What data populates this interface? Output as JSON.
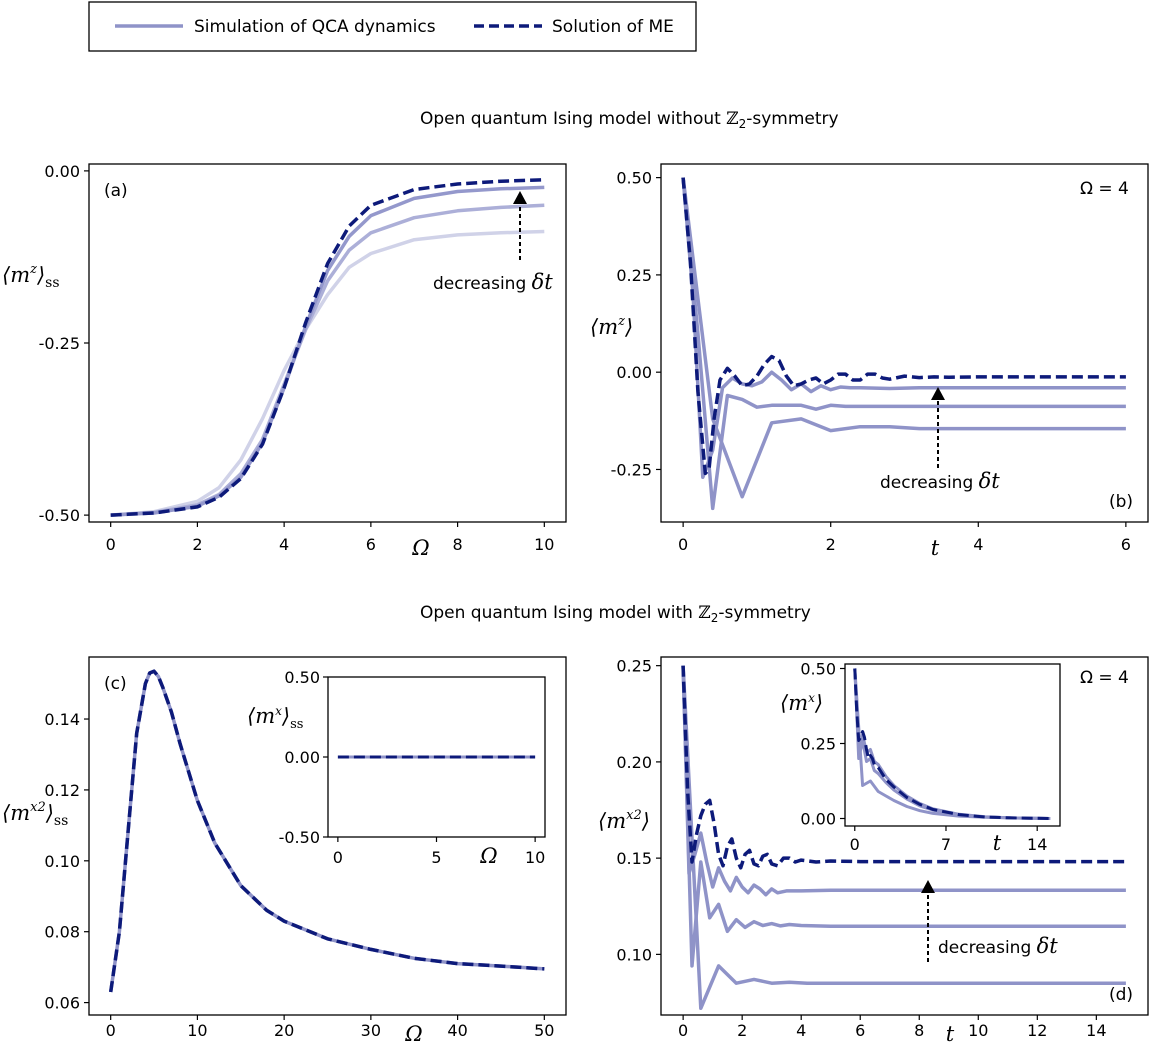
{
  "legend": {
    "sim_label": "Simulation of QCA dynamics",
    "me_label": "Solution of ME"
  },
  "section_titles": {
    "top_prefix": "Open quantum Ising model without ",
    "top_suffix": "-symmetry",
    "bottom_prefix": "Open quantum Ising model with ",
    "bottom_suffix": "-symmetry",
    "symbol": "ℤ",
    "symbol_sub": "2"
  },
  "annotations": {
    "decreasing": "decreasing ",
    "dt": "δt",
    "omega_value": "Ω = 4"
  },
  "colors": {
    "me": "#0d1a7a",
    "sim": "#8f93c8",
    "sim_light_1": "#d0d2e8",
    "sim_light_2": "#acafd8",
    "sim_light_3": "#9498cc"
  },
  "chart_data": [
    {
      "id": "a",
      "panel_label": "(a)",
      "type": "line",
      "xlabel": "Ω",
      "ylabel": "⟨mᶻ⟩ss",
      "xlim": [
        -0.5,
        10.5
      ],
      "ylim": [
        -0.51,
        0.01
      ],
      "xticks": [
        "0",
        "2",
        "4",
        "6",
        "8",
        "10"
      ],
      "yticks": [
        "-0.50",
        "-0.25",
        "0.00"
      ],
      "series": [
        {
          "role": "sim",
          "shade": 1,
          "x": [
            0,
            1,
            2,
            2.5,
            3,
            3.5,
            4,
            4.5,
            5,
            5.5,
            6,
            7,
            8,
            9,
            10
          ],
          "y": [
            -0.5,
            -0.495,
            -0.48,
            -0.46,
            -0.42,
            -0.36,
            -0.29,
            -0.23,
            -0.18,
            -0.14,
            -0.12,
            -0.1,
            -0.093,
            -0.09,
            -0.088
          ]
        },
        {
          "role": "sim",
          "shade": 2,
          "x": [
            0,
            1,
            2,
            2.5,
            3,
            3.5,
            4,
            4.5,
            5,
            5.5,
            6,
            7,
            8,
            9,
            10
          ],
          "y": [
            -0.5,
            -0.496,
            -0.485,
            -0.47,
            -0.44,
            -0.39,
            -0.31,
            -0.23,
            -0.16,
            -0.115,
            -0.09,
            -0.068,
            -0.058,
            -0.053,
            -0.05
          ]
        },
        {
          "role": "sim",
          "shade": 3,
          "x": [
            0,
            1,
            2,
            2.5,
            3,
            3.5,
            4,
            4.5,
            5,
            5.5,
            6,
            7,
            8,
            9,
            10
          ],
          "y": [
            -0.5,
            -0.497,
            -0.487,
            -0.472,
            -0.445,
            -0.395,
            -0.315,
            -0.225,
            -0.145,
            -0.095,
            -0.065,
            -0.04,
            -0.03,
            -0.026,
            -0.024
          ]
        },
        {
          "role": "me",
          "x": [
            0,
            1,
            2,
            2.5,
            3,
            3.5,
            4,
            4.5,
            5,
            5.5,
            6,
            7,
            8,
            9,
            10
          ],
          "y": [
            -0.5,
            -0.497,
            -0.488,
            -0.474,
            -0.447,
            -0.397,
            -0.315,
            -0.22,
            -0.135,
            -0.08,
            -0.05,
            -0.027,
            -0.019,
            -0.015,
            -0.013
          ]
        }
      ]
    },
    {
      "id": "b",
      "panel_label": "(b)",
      "type": "line",
      "xlabel": "t",
      "ylabel": "⟨mᶻ⟩",
      "xlim": [
        -0.3,
        6.3
      ],
      "ylim": [
        -0.385,
        0.535
      ],
      "xticks": [
        "0",
        "2",
        "4",
        "6"
      ],
      "yticks": [
        "-0.25",
        "0.00",
        "0.25",
        "0.50"
      ],
      "series": [
        {
          "role": "sim",
          "x": [
            0,
            0.4,
            0.8,
            1.2,
            1.6,
            2.0,
            2.4,
            2.8,
            3.2,
            4.0,
            5.0,
            6.0
          ],
          "y": [
            0.5,
            -0.12,
            -0.32,
            -0.13,
            -0.12,
            -0.15,
            -0.14,
            -0.14,
            -0.145,
            -0.145,
            -0.145,
            -0.145
          ]
        },
        {
          "role": "sim",
          "x": [
            0,
            0.2,
            0.4,
            0.6,
            0.8,
            1.0,
            1.2,
            1.4,
            1.6,
            1.8,
            2.0,
            2.2,
            2.6,
            3.0,
            4.0,
            5.0,
            6.0
          ],
          "y": [
            0.5,
            0.1,
            -0.35,
            -0.06,
            -0.07,
            -0.09,
            -0.085,
            -0.085,
            -0.085,
            -0.095,
            -0.085,
            -0.088,
            -0.088,
            -0.088,
            -0.088,
            -0.088,
            -0.088
          ]
        },
        {
          "role": "sim",
          "x": [
            0,
            0.133,
            0.267,
            0.4,
            0.533,
            0.667,
            0.8,
            0.933,
            1.067,
            1.2,
            1.333,
            1.467,
            1.6,
            1.733,
            1.867,
            2.0,
            2.133,
            2.267,
            2.4,
            2.8,
            3.2,
            3.6,
            4.0,
            5.0,
            6.0
          ],
          "y": [
            0.5,
            0.2,
            -0.27,
            -0.2,
            -0.04,
            -0.015,
            -0.03,
            -0.035,
            -0.025,
            0.0,
            -0.02,
            -0.045,
            -0.03,
            -0.05,
            -0.035,
            -0.045,
            -0.038,
            -0.04,
            -0.04,
            -0.042,
            -0.04,
            -0.04,
            -0.04,
            -0.04,
            -0.04
          ]
        },
        {
          "role": "me",
          "x": [
            0,
            0.1,
            0.2,
            0.3,
            0.35,
            0.42,
            0.5,
            0.6,
            0.7,
            0.8,
            0.9,
            1.0,
            1.1,
            1.2,
            1.3,
            1.4,
            1.5,
            1.6,
            1.7,
            1.8,
            1.9,
            2.0,
            2.1,
            2.2,
            2.3,
            2.4,
            2.5,
            2.6,
            2.7,
            2.8,
            3.0,
            3.2,
            3.4,
            3.6,
            4.0,
            4.5,
            5.0,
            6.0
          ],
          "y": [
            0.5,
            0.28,
            -0.05,
            -0.26,
            -0.25,
            -0.12,
            -0.02,
            0.01,
            -0.01,
            -0.035,
            -0.03,
            -0.01,
            0.02,
            0.04,
            0.03,
            -0.01,
            -0.035,
            -0.03,
            -0.02,
            -0.015,
            -0.03,
            -0.02,
            -0.005,
            -0.005,
            -0.02,
            -0.02,
            -0.005,
            -0.005,
            -0.015,
            -0.018,
            -0.01,
            -0.014,
            -0.012,
            -0.013,
            -0.012,
            -0.012,
            -0.012,
            -0.012
          ]
        }
      ]
    },
    {
      "id": "c",
      "panel_label": "(c)",
      "type": "line",
      "xlabel": "Ω",
      "ylabel": "⟨mˣ²⟩ss",
      "xlim": [
        -2.5,
        52.5
      ],
      "ylim": [
        0.0565,
        0.1575
      ],
      "xticks": [
        "0",
        "10",
        "20",
        "30",
        "40",
        "50"
      ],
      "yticks": [
        "0.06",
        "0.08",
        "0.10",
        "0.12",
        "0.14"
      ],
      "series": [
        {
          "role": "sim",
          "x": [
            0,
            1,
            2,
            3,
            4,
            4.5,
            5,
            5.5,
            6,
            7,
            8,
            10,
            12,
            15,
            18,
            20,
            25,
            30,
            35,
            40,
            45,
            50
          ],
          "y": [
            0.063,
            0.08,
            0.108,
            0.136,
            0.15,
            0.153,
            0.1535,
            0.152,
            0.149,
            0.142,
            0.133,
            0.117,
            0.105,
            0.093,
            0.086,
            0.083,
            0.078,
            0.075,
            0.0725,
            0.071,
            0.0703,
            0.0695
          ]
        },
        {
          "role": "me",
          "x": [
            0,
            1,
            2,
            3,
            4,
            4.5,
            5,
            5.5,
            6,
            7,
            8,
            10,
            12,
            15,
            18,
            20,
            25,
            30,
            35,
            40,
            45,
            50
          ],
          "y": [
            0.063,
            0.08,
            0.108,
            0.136,
            0.15,
            0.153,
            0.1535,
            0.152,
            0.149,
            0.142,
            0.133,
            0.117,
            0.105,
            0.093,
            0.086,
            0.083,
            0.078,
            0.075,
            0.0725,
            0.071,
            0.0703,
            0.0695
          ]
        }
      ],
      "inset": {
        "xlabel": "Ω",
        "ylabel": "⟨mˣ⟩ss",
        "xlim": [
          -0.5,
          10.5
        ],
        "ylim": [
          -0.5,
          0.5
        ],
        "xticks": [
          "0",
          "5",
          "10"
        ],
        "yticks": [
          "-0.50",
          "0.00",
          "0.50"
        ],
        "series": [
          {
            "role": "sim",
            "x": [
              0,
              10
            ],
            "y": [
              0,
              0
            ]
          },
          {
            "role": "me",
            "x": [
              0,
              10
            ],
            "y": [
              0,
              0
            ]
          }
        ]
      }
    },
    {
      "id": "d",
      "panel_label": "(d)",
      "type": "line",
      "xlabel": "t",
      "ylabel": "⟨mˣ²⟩",
      "xlim": [
        -0.75,
        15.75
      ],
      "ylim": [
        0.0685,
        0.2545
      ],
      "xticks": [
        "0",
        "2",
        "4",
        "6",
        "8",
        "10",
        "12",
        "14"
      ],
      "yticks": [
        "0.10",
        "0.15",
        "0.20",
        "0.25"
      ],
      "series": [
        {
          "role": "sim",
          "x": [
            0,
            0.6,
            1.2,
            1.8,
            2.4,
            3.0,
            3.6,
            4.2,
            5,
            6,
            8,
            10,
            15
          ],
          "y": [
            0.25,
            0.072,
            0.094,
            0.085,
            0.087,
            0.085,
            0.0855,
            0.085,
            0.085,
            0.085,
            0.085,
            0.085,
            0.085
          ]
        },
        {
          "role": "sim",
          "x": [
            0,
            0.3,
            0.6,
            0.9,
            1.2,
            1.5,
            1.8,
            2.1,
            2.4,
            2.7,
            3.0,
            3.3,
            3.6,
            4.0,
            5,
            6,
            8,
            15
          ],
          "y": [
            0.25,
            0.094,
            0.148,
            0.119,
            0.126,
            0.112,
            0.118,
            0.114,
            0.117,
            0.115,
            0.116,
            0.1148,
            0.1155,
            0.115,
            0.1146,
            0.1146,
            0.1146,
            0.1146
          ]
        },
        {
          "role": "sim",
          "x": [
            0,
            0.2,
            0.4,
            0.6,
            0.8,
            1.0,
            1.2,
            1.4,
            1.6,
            1.8,
            2.0,
            2.2,
            2.4,
            2.6,
            2.8,
            3.0,
            3.2,
            3.5,
            4.0,
            5,
            6,
            8,
            15
          ],
          "y": [
            0.25,
            0.142,
            0.152,
            0.163,
            0.148,
            0.135,
            0.145,
            0.138,
            0.133,
            0.14,
            0.135,
            0.132,
            0.136,
            0.134,
            0.131,
            0.134,
            0.132,
            0.133,
            0.133,
            0.1333,
            0.1333,
            0.1333,
            0.1333
          ]
        },
        {
          "role": "me",
          "x": [
            0,
            0.15,
            0.3,
            0.45,
            0.6,
            0.75,
            0.9,
            1.05,
            1.2,
            1.35,
            1.5,
            1.65,
            1.8,
            1.95,
            2.1,
            2.25,
            2.4,
            2.55,
            2.7,
            2.85,
            3.0,
            3.2,
            3.4,
            3.6,
            3.8,
            4.0,
            4.5,
            5,
            6,
            8,
            10,
            15
          ],
          "y": [
            0.25,
            0.185,
            0.148,
            0.162,
            0.172,
            0.178,
            0.18,
            0.168,
            0.152,
            0.146,
            0.156,
            0.16,
            0.15,
            0.145,
            0.152,
            0.154,
            0.147,
            0.146,
            0.151,
            0.152,
            0.147,
            0.146,
            0.15,
            0.15,
            0.148,
            0.149,
            0.148,
            0.1485,
            0.1482,
            0.1482,
            0.1482,
            0.1482
          ]
        }
      ],
      "inset": {
        "xlabel": "t",
        "ylabel": "⟨mˣ⟩",
        "xlim": [
          -0.75,
          15.75
        ],
        "ylim": [
          -0.025,
          0.515
        ],
        "xticks": [
          "0",
          "7",
          "14"
        ],
        "yticks": [
          "0.00",
          "0.25",
          "0.50"
        ],
        "series": [
          {
            "role": "sim",
            "x": [
              0,
              0.6,
              1.2,
              1.8,
              2.4,
              3,
              4,
              5,
              6,
              8,
              10,
              12,
              15
            ],
            "y": [
              0.5,
              0.11,
              0.125,
              0.09,
              0.075,
              0.06,
              0.04,
              0.026,
              0.017,
              0.008,
              0.004,
              0.002,
              0.0
            ]
          },
          {
            "role": "sim",
            "x": [
              0,
              0.3,
              0.6,
              0.9,
              1.2,
              1.5,
              1.8,
              2.4,
              3,
              4,
              5,
              6,
              8,
              10,
              12,
              15
            ],
            "y": [
              0.5,
              0.2,
              0.26,
              0.19,
              0.2,
              0.16,
              0.15,
              0.12,
              0.095,
              0.065,
              0.042,
              0.028,
              0.012,
              0.005,
              0.002,
              0.0
            ]
          },
          {
            "role": "sim",
            "x": [
              0,
              0.3,
              0.6,
              0.9,
              1.2,
              1.5,
              1.8,
              2.1,
              2.4,
              3,
              4,
              5,
              6,
              8,
              10,
              12,
              15
            ],
            "y": [
              0.5,
              0.24,
              0.28,
              0.22,
              0.23,
              0.19,
              0.18,
              0.16,
              0.14,
              0.11,
              0.075,
              0.05,
              0.032,
              0.014,
              0.006,
              0.002,
              0.0
            ]
          },
          {
            "role": "me",
            "x": [
              0,
              0.15,
              0.3,
              0.45,
              0.6,
              0.75,
              0.9,
              1.05,
              1.2,
              1.35,
              1.5,
              1.8,
              2.1,
              2.4,
              3,
              4,
              5,
              6,
              8,
              10,
              12,
              15
            ],
            "y": [
              0.5,
              0.36,
              0.26,
              0.27,
              0.29,
              0.27,
              0.23,
              0.2,
              0.21,
              0.2,
              0.18,
              0.17,
              0.15,
              0.13,
              0.105,
              0.07,
              0.047,
              0.03,
              0.013,
              0.005,
              0.002,
              0.0
            ]
          }
        ]
      }
    }
  ]
}
